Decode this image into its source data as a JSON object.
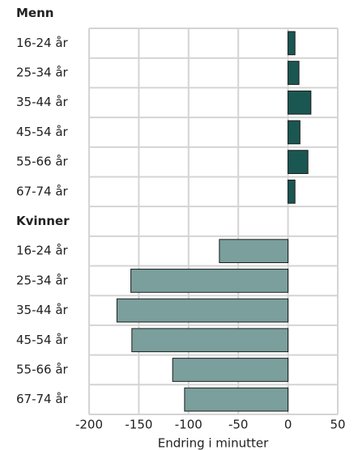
{
  "chart_data": {
    "type": "bar",
    "orientation": "horizontal",
    "xlabel": "Endring i minutter",
    "xlim": [
      -200,
      50
    ],
    "xticks": [
      -200,
      -150,
      -100,
      -50,
      0,
      50
    ],
    "grid": true,
    "groups": [
      {
        "name": "Menn",
        "color": "#1b5752",
        "categories": [
          "16-24 år",
          "25-34 år",
          "35-44 år",
          "45-54 år",
          "55-66 år",
          "67-74 år"
        ],
        "values": [
          7,
          11,
          23,
          12,
          20,
          7
        ]
      },
      {
        "name": "Kvinner",
        "color": "#7a9f9c",
        "categories": [
          "16-24 år",
          "25-34 år",
          "35-44 år",
          "45-54 år",
          "55-66 år",
          "67-74 år"
        ],
        "values": [
          -69,
          -158,
          -172,
          -157,
          -116,
          -104
        ]
      }
    ]
  }
}
